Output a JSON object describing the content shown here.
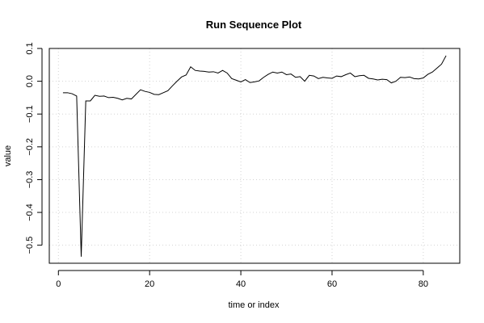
{
  "chart_data": {
    "type": "line",
    "title": "Run Sequence Plot",
    "xlabel": "time or index",
    "ylabel": "value",
    "xlim": [
      -2,
      88
    ],
    "ylim": [
      -0.555,
      0.1
    ],
    "x_ticks": [
      0,
      20,
      40,
      60,
      80
    ],
    "y_ticks": [
      0.1,
      0.0,
      -0.1,
      -0.2,
      -0.3,
      -0.4,
      -0.5
    ],
    "x_tick_labels": [
      "0",
      "20",
      "40",
      "60",
      "80"
    ],
    "y_tick_labels": [
      "0.1",
      "0.0",
      "−0.1",
      "−0.2",
      "−0.3",
      "−0.4",
      "−0.5"
    ],
    "grid": true,
    "series": [
      {
        "x": [
          1,
          2,
          3,
          4,
          5,
          6,
          7,
          8,
          9,
          10,
          11,
          12,
          13,
          14,
          15,
          16,
          17,
          18,
          19,
          20,
          21,
          22,
          23,
          24,
          25,
          26,
          27,
          28,
          29,
          30,
          31,
          32,
          33,
          34,
          35,
          36,
          37,
          38,
          39,
          40,
          41,
          42,
          43,
          44,
          45,
          46,
          47,
          48,
          49,
          50,
          51,
          52,
          53,
          54,
          55,
          56,
          57,
          58,
          59,
          60,
          61,
          62,
          63,
          64,
          65,
          66,
          67,
          68,
          69,
          70,
          71,
          72,
          73,
          74,
          75,
          76,
          77,
          78,
          79,
          80,
          81,
          82,
          83,
          84,
          85
        ],
        "values": [
          -0.035,
          -0.035,
          -0.038,
          -0.045,
          -0.535,
          -0.06,
          -0.06,
          -0.043,
          -0.046,
          -0.045,
          -0.05,
          -0.049,
          -0.052,
          -0.057,
          -0.052,
          -0.054,
          -0.04,
          -0.026,
          -0.031,
          -0.034,
          -0.04,
          -0.041,
          -0.035,
          -0.029,
          -0.014,
          0.0,
          0.013,
          0.019,
          0.044,
          0.033,
          0.031,
          0.03,
          0.028,
          0.029,
          0.025,
          0.033,
          0.025,
          0.008,
          0.003,
          -0.002,
          0.005,
          -0.004,
          -0.002,
          0.001,
          0.012,
          0.021,
          0.028,
          0.025,
          0.028,
          0.02,
          0.022,
          0.012,
          0.014,
          0.0,
          0.018,
          0.016,
          0.008,
          0.012,
          0.01,
          0.009,
          0.016,
          0.014,
          0.02,
          0.025,
          0.014,
          0.017,
          0.018,
          0.009,
          0.007,
          0.004,
          0.006,
          0.005,
          -0.005,
          0.0,
          0.012,
          0.011,
          0.013,
          0.008,
          0.007,
          0.01,
          0.021,
          0.028,
          0.04,
          0.052,
          0.078
        ]
      }
    ]
  }
}
